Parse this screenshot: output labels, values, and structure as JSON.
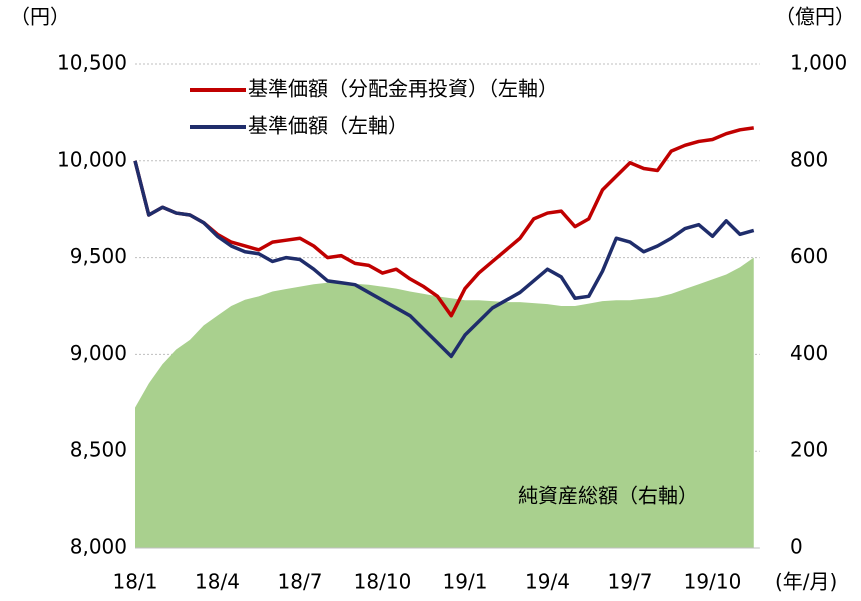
{
  "chart_data": {
    "type": "line",
    "ylabel": "（円）",
    "y2label": "（億円）",
    "xlabel": "(年/月)",
    "categories": [
      "18/1",
      null,
      null,
      null,
      null,
      null,
      "18/4",
      null,
      null,
      null,
      null,
      null,
      "18/7",
      null,
      null,
      null,
      null,
      null,
      "18/10",
      null,
      null,
      null,
      null,
      null,
      "19/1",
      null,
      null,
      null,
      null,
      null,
      "19/4",
      null,
      null,
      null,
      null,
      null,
      "19/7",
      null,
      null,
      null,
      null,
      null,
      "19/10",
      null,
      null,
      null
    ],
    "series": [
      {
        "name": "純資産総額（右軸）",
        "type": "area",
        "axis": "y2",
        "color": "#a9d08e",
        "values": [
          290,
          340,
          380,
          410,
          430,
          460,
          480,
          500,
          513,
          520,
          530,
          535,
          540,
          545,
          548,
          548,
          546,
          544,
          540,
          536,
          530,
          525,
          520,
          516,
          512,
          512,
          510,
          508,
          508,
          506,
          504,
          500,
          500,
          505,
          510,
          512,
          512,
          515,
          518,
          525,
          535,
          545,
          555,
          565,
          580,
          600
        ]
      },
      {
        "name": "基準価額（分配金再投資）（左軸）",
        "type": "line",
        "color": "#c00000",
        "values": [
          10000,
          9720,
          9760,
          9730,
          9720,
          9680,
          9620,
          9580,
          9560,
          9540,
          9580,
          9590,
          9600,
          9560,
          9500,
          9510,
          9470,
          9460,
          9420,
          9440,
          9390,
          9350,
          9300,
          9200,
          9340,
          9420,
          9480,
          9540,
          9600,
          9700,
          9730,
          9740,
          9660,
          9700,
          9850,
          9920,
          9990,
          9960,
          9950,
          10050,
          10080,
          10100,
          10110,
          10140,
          10160,
          10170
        ]
      },
      {
        "name": "基準価額（左軸）",
        "type": "line",
        "color": "#1f2d6b",
        "values": [
          10000,
          9720,
          9760,
          9730,
          9720,
          9680,
          9610,
          9560,
          9530,
          9520,
          9480,
          9500,
          9490,
          9440,
          9380,
          9370,
          9360,
          9320,
          9280,
          9240,
          9200,
          9130,
          9060,
          8990,
          9100,
          9170,
          9240,
          9280,
          9320,
          9380,
          9440,
          9400,
          9290,
          9300,
          9430,
          9600,
          9580,
          9530,
          9560,
          9600,
          9650,
          9670,
          9610,
          9690,
          9620,
          9640
        ]
      }
    ],
    "ylim": [
      8000,
      10500
    ],
    "yticks": [
      {
        "value": 8000,
        "label": "8,000"
      },
      {
        "value": 8500,
        "label": "8,500"
      },
      {
        "value": 9000,
        "label": "9,000"
      },
      {
        "value": 9500,
        "label": "9,500"
      },
      {
        "value": 10000,
        "label": "10,000"
      },
      {
        "value": 10500,
        "label": "10,500"
      }
    ],
    "y2lim": [
      0,
      1000
    ],
    "y2ticks": [
      0,
      200,
      400,
      600,
      800,
      {
        "value": 1000,
        "label": "1,000"
      }
    ],
    "grid": true
  }
}
